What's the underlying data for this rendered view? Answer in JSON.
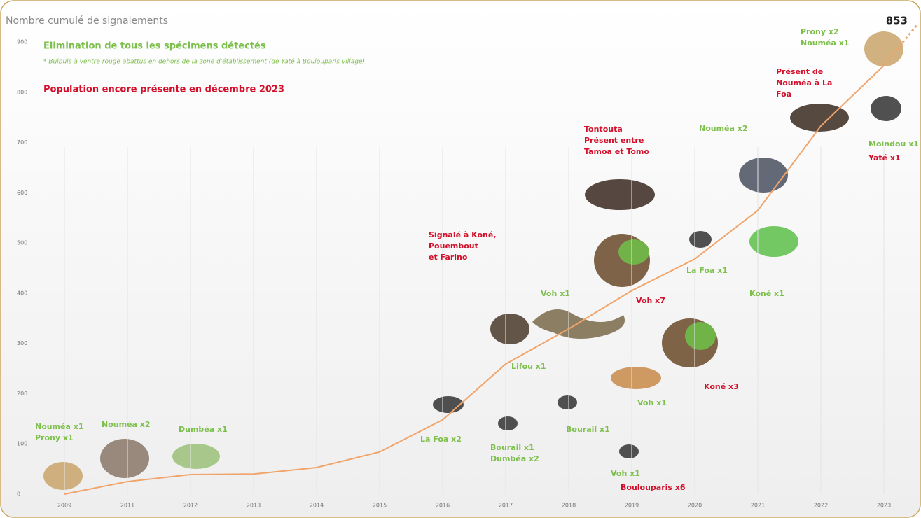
{
  "chart_data": {
    "type": "line",
    "title": "Nombre cumulé de signalements",
    "categories": [
      "2009",
      "2011",
      "2012",
      "2013",
      "2014",
      "2015",
      "2016",
      "2017",
      "2018",
      "2019",
      "2020",
      "2021",
      "2022",
      "2023"
    ],
    "series": [
      {
        "color": "#f0a46a",
        "values": [
          0,
          25,
          39,
          40,
          53,
          84,
          148,
          259,
          329,
          405,
          468,
          565,
          733,
          853
        ]
      }
    ],
    "ylim": [
      0,
      900
    ],
    "yticks": [
      0,
      100,
      200,
      300,
      400,
      500,
      600,
      700,
      800,
      900
    ],
    "final_label": "853",
    "legend": {
      "eliminated": "Elimination de tous les spécimens détectés",
      "note": "* Bulbuls à ventre rouge abattus en dehors de la zone d'établissement (de Yaté à Boulouparis village)",
      "present": "Population encore présente en décembre 2023"
    },
    "annotations": [
      {
        "color": "green",
        "lines": [
          "Nouméa x1",
          "Prony x1"
        ]
      },
      {
        "color": "green",
        "lines": [
          "Nouméa x2"
        ]
      },
      {
        "color": "green",
        "lines": [
          "Dumbéa x1"
        ]
      },
      {
        "color": "green",
        "lines": [
          "La Foa x2"
        ]
      },
      {
        "color": "green",
        "lines": [
          "Bourail x1",
          "Dumbéa x2"
        ]
      },
      {
        "color": "green",
        "lines": [
          "Lifou x1"
        ]
      },
      {
        "color": "green",
        "lines": [
          "Voh x1"
        ]
      },
      {
        "color": "green",
        "lines": [
          "Bourail x1"
        ]
      },
      {
        "color": "green",
        "lines": [
          "Voh x1"
        ]
      },
      {
        "color": "red",
        "lines": [
          "Boulouparis x6"
        ]
      },
      {
        "color": "green",
        "lines": [
          "Voh x1"
        ]
      },
      {
        "color": "green",
        "lines": [
          "La Foa x1"
        ]
      },
      {
        "color": "green",
        "lines": [
          "Nouméa x2"
        ]
      },
      {
        "color": "green",
        "lines": [
          "Koné x1"
        ]
      },
      {
        "color": "green",
        "lines": [
          "Prony x2",
          "Nouméa x1"
        ]
      },
      {
        "color": "green",
        "lines": [
          "Moindou x1"
        ]
      },
      {
        "color": "red",
        "lines": [
          "Signalé à Koné,",
          "Pouembout",
          "et Farino"
        ]
      },
      {
        "color": "red",
        "lines": [
          "Tontouta",
          "Présent entre",
          "Tamoa et Tomo"
        ]
      },
      {
        "color": "red",
        "lines": [
          "Voh x7"
        ]
      },
      {
        "color": "red",
        "lines": [
          "Koné x3"
        ]
      },
      {
        "color": "red",
        "lines": [
          "Présent de",
          "Nouméa à La",
          "Foa"
        ]
      },
      {
        "color": "red",
        "lines": [
          "Yaté x1"
        ]
      }
    ]
  }
}
